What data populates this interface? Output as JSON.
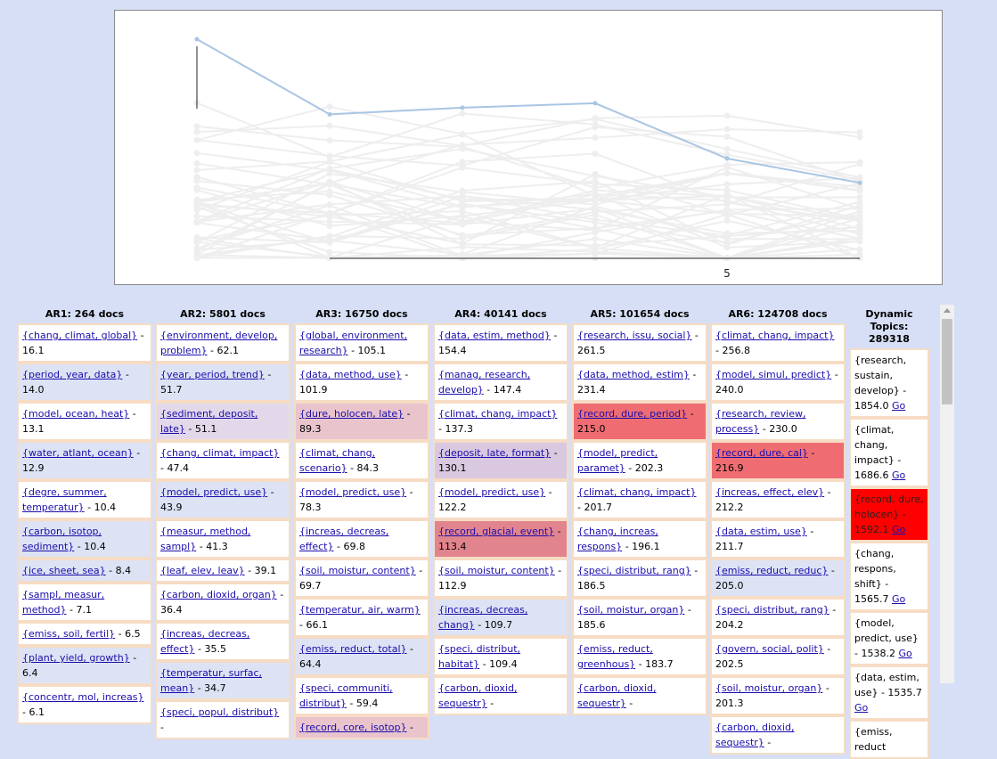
{
  "chart_data": {
    "type": "line",
    "x_tick_label": "5",
    "highlight_series": {
      "x": [
        1,
        2,
        3,
        4,
        5,
        6
      ],
      "values": [
        1.0,
        0.66,
        0.69,
        0.71,
        0.46,
        0.35
      ]
    },
    "background_series_count": 40,
    "colors": {
      "highlight": "#a9c5e3",
      "background": "#eeeeee"
    }
  },
  "columns": [
    {
      "title": "AR1: 264 docs",
      "items": [
        {
          "topic": "{chang, climat, global}",
          "score": "16.1",
          "bg": "#ffffff"
        },
        {
          "topic": "{period, year, data}",
          "score": "14.0",
          "bg": "#dde3f4"
        },
        {
          "topic": "{model, ocean, heat}",
          "score": "13.1",
          "bg": "#ffffff"
        },
        {
          "topic": "{water, atlant, ocean}",
          "score": "12.9",
          "bg": "#dde3f4"
        },
        {
          "topic": "{degre, summer, temperatur}",
          "score": "10.4",
          "bg": "#ffffff"
        },
        {
          "topic": "{carbon, isotop, sediment}",
          "score": "10.4",
          "bg": "#dde3f4"
        },
        {
          "topic": "{ice, sheet, sea}",
          "score": "8.4",
          "bg": "#dde3f4"
        },
        {
          "topic": "{sampl, measur, method}",
          "score": "7.1",
          "bg": "#ffffff"
        },
        {
          "topic": "{emiss, soil, fertil}",
          "score": "6.5",
          "bg": "#ffffff"
        },
        {
          "topic": "{plant, yield, growth}",
          "score": "6.4",
          "bg": "#dde3f4"
        },
        {
          "topic": "{concentr, mol, increas}",
          "score": "6.1",
          "bg": "#ffffff"
        }
      ]
    },
    {
      "title": "AR2: 5801 docs",
      "items": [
        {
          "topic": "{environment, develop, problem}",
          "score": "62.1",
          "bg": "#ffffff"
        },
        {
          "topic": "{year, period, trend}",
          "score": "51.7",
          "bg": "#dde3f4"
        },
        {
          "topic": "{sediment, deposit, late}",
          "score": "51.1",
          "bg": "#e2d8ea"
        },
        {
          "topic": "{chang, climat, impact}",
          "score": "47.4",
          "bg": "#ffffff"
        },
        {
          "topic": "{model, predict, use}",
          "score": "43.9",
          "bg": "#dde3f4"
        },
        {
          "topic": "{measur, method, sampl}",
          "score": "41.3",
          "bg": "#ffffff"
        },
        {
          "topic": "{leaf, elev, leav}",
          "score": "39.1",
          "bg": "#ffffff"
        },
        {
          "topic": "{carbon, dioxid, organ}",
          "score": "36.4",
          "bg": "#ffffff"
        },
        {
          "topic": "{increas, decreas, effect}",
          "score": "35.5",
          "bg": "#ffffff"
        },
        {
          "topic": "{temperatur, surfac, mean}",
          "score": "34.7",
          "bg": "#dde3f4"
        },
        {
          "topic": "{speci, popul, distribut}",
          "score": "",
          "bg": "#ffffff"
        }
      ]
    },
    {
      "title": "AR3: 16750 docs",
      "items": [
        {
          "topic": "{global, environment, research}",
          "score": "105.1",
          "bg": "#ffffff"
        },
        {
          "topic": "{data, method, use}",
          "score": "101.9",
          "bg": "#ffffff"
        },
        {
          "topic": "{dure, holocen, late}",
          "score": "89.3",
          "bg": "#e9c4cd"
        },
        {
          "topic": "{climat, chang, scenario}",
          "score": "84.3",
          "bg": "#ffffff"
        },
        {
          "topic": "{model, predict, use}",
          "score": "78.3",
          "bg": "#ffffff"
        },
        {
          "topic": "{increas, decreas, effect}",
          "score": "69.8",
          "bg": "#ffffff"
        },
        {
          "topic": "{soil, moistur, content}",
          "score": "69.7",
          "bg": "#ffffff"
        },
        {
          "topic": "{temperatur, air, warm}",
          "score": "66.1",
          "bg": "#ffffff"
        },
        {
          "topic": "{emiss, reduct, total}",
          "score": "64.4",
          "bg": "#dde3f4"
        },
        {
          "topic": "{speci, communiti, distribut}",
          "score": "59.4",
          "bg": "#ffffff"
        },
        {
          "topic": "{record, core, isotop}",
          "score": "",
          "bg": "#e9c4cd"
        }
      ]
    },
    {
      "title": "AR4: 40141 docs",
      "items": [
        {
          "topic": "{data, estim, method}",
          "score": "154.4",
          "bg": "#ffffff"
        },
        {
          "topic": "{manag, research, develop}",
          "score": "147.4",
          "bg": "#ffffff"
        },
        {
          "topic": "{climat, chang, impact}",
          "score": "137.3",
          "bg": "#ffffff"
        },
        {
          "topic": "{deposit, late, format}",
          "score": "130.1",
          "bg": "#d9c8df"
        },
        {
          "topic": "{model, predict, use}",
          "score": "122.2",
          "bg": "#ffffff"
        },
        {
          "topic": "{record, glacial, event}",
          "score": "113.4",
          "bg": "#e2848d"
        },
        {
          "topic": "{soil, moistur, content}",
          "score": "112.9",
          "bg": "#ffffff"
        },
        {
          "topic": "{increas, decreas, chang}",
          "score": "109.7",
          "bg": "#dde3f4"
        },
        {
          "topic": "{speci, distribut, habitat}",
          "score": "109.4",
          "bg": "#ffffff"
        },
        {
          "topic": "{carbon, dioxid, sequestr}",
          "score": "",
          "bg": "#ffffff"
        }
      ]
    },
    {
      "title": "AR5: 101654 docs",
      "items": [
        {
          "topic": "{research, issu, social}",
          "score": "261.5",
          "bg": "#ffffff"
        },
        {
          "topic": "{data, method, estim}",
          "score": "231.4",
          "bg": "#ffffff"
        },
        {
          "topic": "{record, dure, period}",
          "score": "215.0",
          "bg": "#ef6d72"
        },
        {
          "topic": "{model, predict, paramet}",
          "score": "202.3",
          "bg": "#ffffff"
        },
        {
          "topic": "{climat, chang, impact}",
          "score": "201.7",
          "bg": "#ffffff"
        },
        {
          "topic": "{chang, increas, respons}",
          "score": "196.1",
          "bg": "#ffffff"
        },
        {
          "topic": "{speci, distribut, rang}",
          "score": "186.5",
          "bg": "#ffffff"
        },
        {
          "topic": "{soil, moistur, organ}",
          "score": "185.6",
          "bg": "#ffffff"
        },
        {
          "topic": "{emiss, reduct, greenhous}",
          "score": "183.7",
          "bg": "#ffffff"
        },
        {
          "topic": "{carbon, dioxid, sequestr}",
          "score": "",
          "bg": "#ffffff"
        }
      ]
    },
    {
      "title": "AR6: 124708 docs",
      "items": [
        {
          "topic": "{climat, chang, impact}",
          "score": "256.8",
          "bg": "#ffffff"
        },
        {
          "topic": "{model, simul, predict}",
          "score": "240.0",
          "bg": "#ffffff"
        },
        {
          "topic": "{research, review, process}",
          "score": "230.0",
          "bg": "#ffffff"
        },
        {
          "topic": "{record, dure, cal}",
          "score": "216.9",
          "bg": "#ef6d72"
        },
        {
          "topic": "{increas, effect, elev}",
          "score": "212.2",
          "bg": "#ffffff"
        },
        {
          "topic": "{data, estim, use}",
          "score": "211.7",
          "bg": "#ffffff"
        },
        {
          "topic": "{emiss, reduct, reduc}",
          "score": "205.0",
          "bg": "#dde3f4"
        },
        {
          "topic": "{speci, distribut, rang}",
          "score": "204.2",
          "bg": "#ffffff"
        },
        {
          "topic": "{govern, social, polit}",
          "score": "202.5",
          "bg": "#ffffff"
        },
        {
          "topic": "{soil, moistur, organ}",
          "score": "201.3",
          "bg": "#ffffff"
        },
        {
          "topic": "{carbon, dioxid, sequestr}",
          "score": "",
          "bg": "#ffffff"
        }
      ]
    }
  ],
  "dynamic": {
    "title_line1": "Dynamic Topics:",
    "title_line2": "289318",
    "go_label": "Go",
    "items": [
      {
        "topic": "{research, sustain, develop}",
        "score": "1854.0",
        "bg": "#ffffff"
      },
      {
        "topic": "{climat, chang, impact}",
        "score": "1686.6",
        "bg": "#ffffff"
      },
      {
        "topic": "{record, dure, holocen}",
        "score": "1592.1",
        "bg": "#ff0000"
      },
      {
        "topic": "{chang, respons, shift}",
        "score": "1565.7",
        "bg": "#ffffff"
      },
      {
        "topic": "{model, predict, use}",
        "score": "1538.2",
        "bg": "#ffffff"
      },
      {
        "topic": "{data, estim, use}",
        "score": "1535.7",
        "bg": "#ffffff"
      },
      {
        "topic": "{emiss, reduct",
        "score": "",
        "bg": "#ffffff"
      }
    ]
  }
}
